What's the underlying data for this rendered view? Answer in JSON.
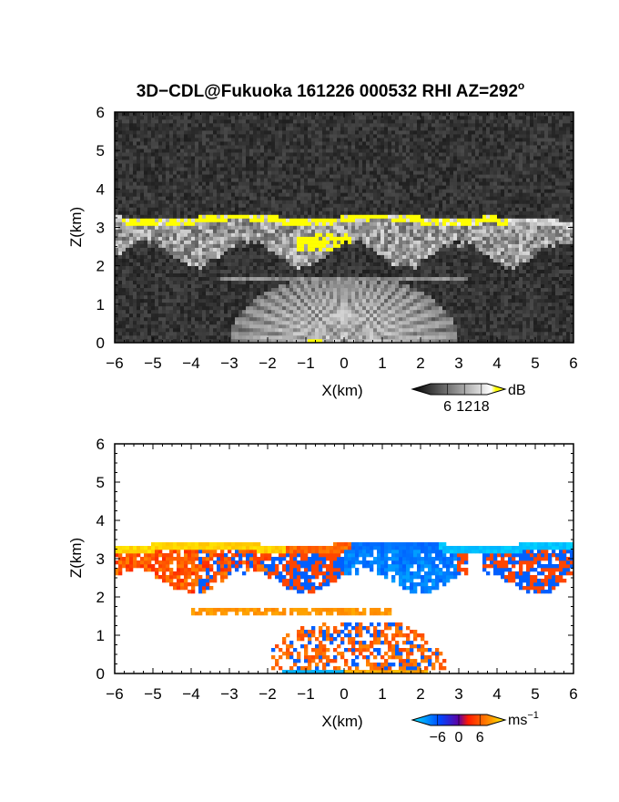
{
  "chart_data": [
    {
      "type": "heatmap",
      "title": "3D−CDL@Fukuoka 161226 000532 RHI AZ=292",
      "title_sup": "o",
      "xlabel": "X(km)",
      "ylabel": "Z(km)",
      "xlim": [
        -6,
        6
      ],
      "ylim": [
        0,
        6
      ],
      "xticks": [
        "−6",
        "−5",
        "−4",
        "−3",
        "−2",
        "−1",
        "0",
        "1",
        "2",
        "3",
        "4",
        "5",
        "6"
      ],
      "yticks": [
        "0",
        "1",
        "2",
        "3",
        "4",
        "5",
        "6"
      ],
      "colorbar": {
        "unit": "dB",
        "unit_sup": "",
        "ticks": [
          "6",
          "12",
          "18"
        ],
        "tick_values": [
          6,
          12,
          18
        ],
        "range": [
          0,
          20
        ],
        "colors": [
          "#000000",
          "#ffffff",
          "#ffff00"
        ]
      },
      "features": {
        "cloud_top_km": 3.3,
        "cloud_base_km": 2.3,
        "boundary_layer_top_km": 1.7
      }
    },
    {
      "type": "heatmap",
      "title": "",
      "xlabel": "X(km)",
      "ylabel": "Z(km)",
      "xlim": [
        -6,
        6
      ],
      "ylim": [
        0,
        6
      ],
      "xticks": [
        "−6",
        "−5",
        "−4",
        "−3",
        "−2",
        "−1",
        "0",
        "1",
        "2",
        "3",
        "4",
        "5",
        "6"
      ],
      "yticks": [
        "0",
        "1",
        "2",
        "3",
        "4",
        "5",
        "6"
      ],
      "colorbar": {
        "unit": "ms",
        "unit_sup": "−1",
        "ticks": [
          "−6",
          "0",
          "6"
        ],
        "tick_values": [
          -6,
          0,
          6
        ],
        "range": [
          -8,
          8
        ],
        "colors": [
          "#00ffff",
          "#0040ff",
          "#ff0000",
          "#ffff00"
        ]
      },
      "features": {
        "cloud_top_km": 3.4,
        "cloud_base_km": 2.4,
        "boundary_layer_top_km": 1.7
      }
    }
  ]
}
